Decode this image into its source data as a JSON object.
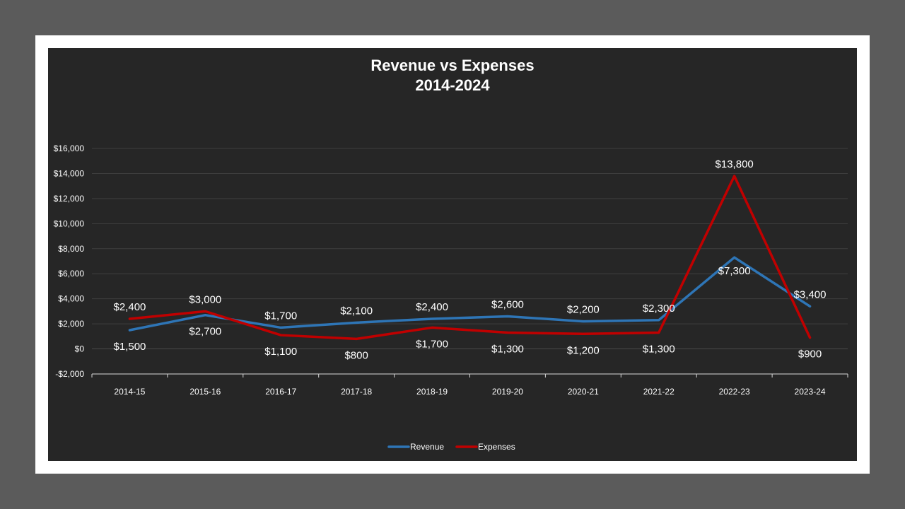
{
  "chart_data": {
    "type": "line",
    "title": "Revenue vs Expenses",
    "subtitle": "2014-2024",
    "categories": [
      "2014-15",
      "2015-16",
      "2016-17",
      "2017-18",
      "2018-19",
      "2019-20",
      "2020-21",
      "2021-22",
      "2022-23",
      "2023-24"
    ],
    "series": [
      {
        "name": "Revenue",
        "color": "#2e75b6",
        "values": [
          1500,
          2700,
          1700,
          2100,
          2400,
          2600,
          2200,
          2300,
          7300,
          3400
        ],
        "labels": [
          "$1,500",
          "$2,700",
          "$1,700",
          "$2,100",
          "$2,400",
          "$2,600",
          "$2,200",
          "$2,300",
          "$7,300",
          "$3,400"
        ]
      },
      {
        "name": "Expenses",
        "color": "#c00000",
        "values": [
          2400,
          3000,
          1100,
          800,
          1700,
          1300,
          1200,
          1300,
          13800,
          900
        ],
        "labels": [
          "$2,400",
          "$3,000",
          "$1,100",
          "$800",
          "$1,700",
          "$1,300",
          "$1,200",
          "$1,300",
          "$13,800",
          "$900"
        ]
      }
    ],
    "ylim": [
      -2000,
      16000
    ],
    "yticks": [
      -2000,
      0,
      2000,
      4000,
      6000,
      8000,
      10000,
      12000,
      14000,
      16000
    ],
    "ytick_labels": [
      "-$2,000",
      "$0",
      "$2,000",
      "$4,000",
      "$6,000",
      "$8,000",
      "$10,000",
      "$12,000",
      "$14,000",
      "$16,000"
    ],
    "grid": true,
    "legend_position": "bottom",
    "background": "#262626"
  }
}
